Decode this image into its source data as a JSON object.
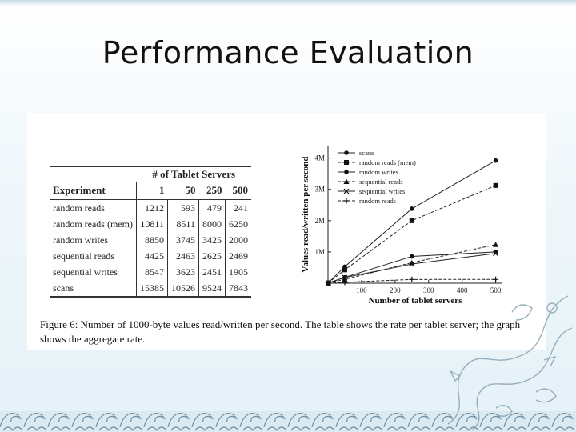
{
  "slide": {
    "title": "Performance Evaluation"
  },
  "table": {
    "group_header": "# of Tablet Servers",
    "experiment_header": "Experiment",
    "server_counts": [
      "1",
      "50",
      "250",
      "500"
    ],
    "rows": [
      {
        "label": "random reads",
        "values": [
          "1212",
          "593",
          "479",
          "241"
        ]
      },
      {
        "label": "random reads (mem)",
        "values": [
          "10811",
          "8511",
          "8000",
          "6250"
        ]
      },
      {
        "label": "random writes",
        "values": [
          "8850",
          "3745",
          "3425",
          "2000"
        ]
      },
      {
        "label": "sequential reads",
        "values": [
          "4425",
          "2463",
          "2625",
          "2469"
        ]
      },
      {
        "label": "sequential writes",
        "values": [
          "8547",
          "3623",
          "2451",
          "1905"
        ]
      },
      {
        "label": "scans",
        "values": [
          "15385",
          "10526",
          "9524",
          "7843"
        ]
      }
    ]
  },
  "caption": "Figure 6: Number of 1000-byte values read/written per second. The table shows the rate per tablet server; the graph shows the aggregate rate.",
  "chart_data": {
    "type": "line",
    "xlabel": "Number of tablet servers",
    "ylabel": "Values read/written per second",
    "x": [
      1,
      50,
      250,
      500
    ],
    "xticks": [
      "100",
      "200",
      "300",
      "400",
      "500"
    ],
    "yticks": [
      "1M",
      "2M",
      "3M",
      "4M"
    ],
    "xlim": [
      0,
      520
    ],
    "ylim": [
      0,
      4400000
    ],
    "legend_position": "top-left",
    "series": [
      {
        "name": "scans",
        "marker": "circle",
        "dash": false,
        "values": [
          15385,
          526300,
          2381000,
          3921500
        ]
      },
      {
        "name": "random reads (mem)",
        "marker": "square",
        "dash": true,
        "values": [
          10811,
          425550,
          2000000,
          3125000
        ]
      },
      {
        "name": "random writes",
        "marker": "circle",
        "dash": false,
        "values": [
          8850,
          187250,
          856250,
          1000000
        ]
      },
      {
        "name": "sequential reads",
        "marker": "triangle",
        "dash": true,
        "values": [
          4425,
          123150,
          656250,
          1234500
        ]
      },
      {
        "name": "sequential writes",
        "marker": "x",
        "dash": false,
        "values": [
          8547,
          181150,
          612750,
          952500
        ]
      },
      {
        "name": "random reads",
        "marker": "plus",
        "dash": true,
        "values": [
          1212,
          29650,
          119750,
          120500
        ]
      }
    ]
  }
}
